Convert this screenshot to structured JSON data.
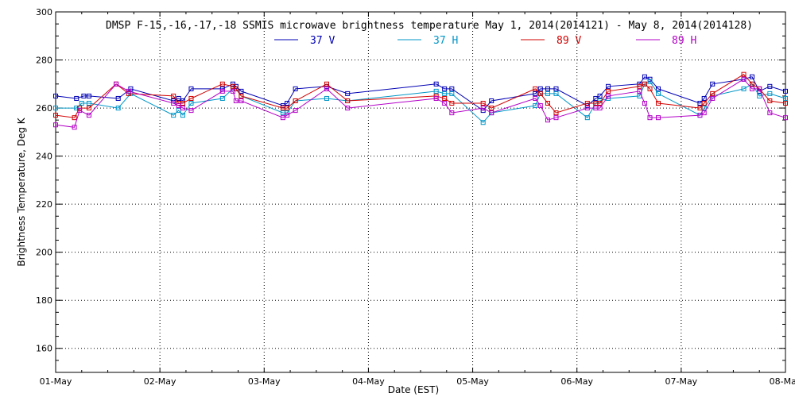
{
  "chart_data": {
    "type": "line",
    "title": "DMSP F-15,-16,-17,-18 SSMIS microwave brightness temperature May  1, 2014(2014121) - May  8, 2014(2014128)",
    "xlabel": "Date (EST)",
    "ylabel": "Brightness Temperature, Deg K",
    "xlim": [
      0,
      7
    ],
    "ylim": [
      150,
      300
    ],
    "xticks": [
      {
        "x": 0,
        "label": "01-May"
      },
      {
        "x": 1,
        "label": "02-May"
      },
      {
        "x": 2,
        "label": "03-May"
      },
      {
        "x": 3,
        "label": "04-May"
      },
      {
        "x": 4,
        "label": "05-May"
      },
      {
        "x": 5,
        "label": "06-May"
      },
      {
        "x": 6,
        "label": "07-May"
      },
      {
        "x": 7,
        "label": "08-May"
      }
    ],
    "yticks": [
      160,
      180,
      200,
      220,
      240,
      260,
      280,
      300
    ],
    "grid": true,
    "legend_position": "top-center",
    "series": [
      {
        "name": "37 V",
        "color": "#0000b4",
        "points": [
          [
            0.0,
            265
          ],
          [
            0.2,
            264
          ],
          [
            0.27,
            265
          ],
          [
            0.32,
            265
          ],
          [
            0.6,
            264
          ],
          [
            0.72,
            268
          ],
          [
            1.13,
            263
          ],
          [
            1.18,
            264
          ],
          [
            1.22,
            263
          ],
          [
            1.3,
            268
          ],
          [
            1.6,
            268
          ],
          [
            1.7,
            270
          ],
          [
            1.73,
            269
          ],
          [
            1.78,
            267
          ],
          [
            2.18,
            261
          ],
          [
            2.22,
            262
          ],
          [
            2.3,
            268
          ],
          [
            2.6,
            269
          ],
          [
            2.8,
            266
          ],
          [
            3.65,
            270
          ],
          [
            3.73,
            268
          ],
          [
            3.8,
            268
          ],
          [
            4.1,
            259
          ],
          [
            4.18,
            263
          ],
          [
            4.6,
            266
          ],
          [
            4.65,
            268
          ],
          [
            4.72,
            268
          ],
          [
            4.8,
            268
          ],
          [
            5.1,
            261
          ],
          [
            5.18,
            264
          ],
          [
            5.22,
            265
          ],
          [
            5.3,
            269
          ],
          [
            5.6,
            270
          ],
          [
            5.65,
            273
          ],
          [
            5.7,
            272
          ],
          [
            5.78,
            268
          ],
          [
            6.18,
            262
          ],
          [
            6.22,
            264
          ],
          [
            6.3,
            270
          ],
          [
            6.6,
            272
          ],
          [
            6.68,
            273
          ],
          [
            6.75,
            267
          ],
          [
            6.85,
            269
          ],
          [
            7.0,
            267
          ]
        ]
      },
      {
        "name": "37 H",
        "color": "#0096c8",
        "points": [
          [
            0.0,
            260
          ],
          [
            0.2,
            260
          ],
          [
            0.25,
            262
          ],
          [
            0.32,
            262
          ],
          [
            0.6,
            260
          ],
          [
            0.72,
            266
          ],
          [
            1.13,
            257
          ],
          [
            1.18,
            259
          ],
          [
            1.22,
            257
          ],
          [
            1.3,
            262
          ],
          [
            1.6,
            264
          ],
          [
            1.7,
            268
          ],
          [
            1.73,
            268
          ],
          [
            1.78,
            265
          ],
          [
            2.18,
            258
          ],
          [
            2.22,
            258
          ],
          [
            2.3,
            263
          ],
          [
            2.6,
            264
          ],
          [
            2.8,
            263
          ],
          [
            3.65,
            267
          ],
          [
            3.73,
            266
          ],
          [
            3.8,
            266
          ],
          [
            4.1,
            254
          ],
          [
            4.18,
            258
          ],
          [
            4.6,
            261
          ],
          [
            4.65,
            266
          ],
          [
            4.72,
            266
          ],
          [
            4.8,
            266
          ],
          [
            5.1,
            256
          ],
          [
            5.18,
            262
          ],
          [
            5.22,
            263
          ],
          [
            5.3,
            264
          ],
          [
            5.6,
            265
          ],
          [
            5.65,
            270
          ],
          [
            5.7,
            271
          ],
          [
            5.78,
            266
          ],
          [
            6.18,
            257
          ],
          [
            6.22,
            260
          ],
          [
            6.3,
            265
          ],
          [
            6.6,
            268
          ],
          [
            6.68,
            270
          ],
          [
            6.75,
            265
          ],
          [
            6.85,
            266
          ],
          [
            7.0,
            264
          ]
        ]
      },
      {
        "name": "89 V",
        "color": "#d20000",
        "points": [
          [
            0.0,
            257
          ],
          [
            0.18,
            256
          ],
          [
            0.23,
            260
          ],
          [
            0.32,
            260
          ],
          [
            0.58,
            270
          ],
          [
            0.7,
            266
          ],
          [
            1.13,
            265
          ],
          [
            1.18,
            262
          ],
          [
            1.22,
            262
          ],
          [
            1.3,
            264
          ],
          [
            1.6,
            270
          ],
          [
            1.7,
            269
          ],
          [
            1.73,
            268
          ],
          [
            1.78,
            265
          ],
          [
            2.18,
            260
          ],
          [
            2.22,
            260
          ],
          [
            2.3,
            263
          ],
          [
            2.6,
            270
          ],
          [
            2.8,
            263
          ],
          [
            3.65,
            265
          ],
          [
            3.73,
            264
          ],
          [
            3.8,
            262
          ],
          [
            4.1,
            262
          ],
          [
            4.18,
            260
          ],
          [
            4.6,
            268
          ],
          [
            4.65,
            266
          ],
          [
            4.72,
            262
          ],
          [
            4.8,
            258
          ],
          [
            5.1,
            262
          ],
          [
            5.18,
            262
          ],
          [
            5.22,
            262
          ],
          [
            5.3,
            267
          ],
          [
            5.6,
            269
          ],
          [
            5.65,
            270
          ],
          [
            5.7,
            268
          ],
          [
            5.78,
            262
          ],
          [
            6.18,
            260
          ],
          [
            6.22,
            262
          ],
          [
            6.3,
            266
          ],
          [
            6.6,
            274
          ],
          [
            6.68,
            270
          ],
          [
            6.75,
            268
          ],
          [
            6.85,
            263
          ],
          [
            7.0,
            262
          ]
        ]
      },
      {
        "name": "89 H",
        "color": "#b400c8",
        "points": [
          [
            0.0,
            253
          ],
          [
            0.18,
            252
          ],
          [
            0.23,
            259
          ],
          [
            0.32,
            257
          ],
          [
            0.58,
            270
          ],
          [
            0.7,
            267
          ],
          [
            1.13,
            262
          ],
          [
            1.18,
            261
          ],
          [
            1.22,
            260
          ],
          [
            1.3,
            259
          ],
          [
            1.6,
            267
          ],
          [
            1.7,
            267
          ],
          [
            1.73,
            263
          ],
          [
            1.78,
            263
          ],
          [
            2.18,
            256
          ],
          [
            2.22,
            257
          ],
          [
            2.3,
            259
          ],
          [
            2.6,
            268
          ],
          [
            2.8,
            260
          ],
          [
            3.65,
            264
          ],
          [
            3.73,
            262
          ],
          [
            3.8,
            258
          ],
          [
            4.1,
            260
          ],
          [
            4.18,
            258
          ],
          [
            4.6,
            264
          ],
          [
            4.65,
            261
          ],
          [
            4.72,
            255
          ],
          [
            4.8,
            256
          ],
          [
            5.1,
            260
          ],
          [
            5.18,
            260
          ],
          [
            5.22,
            260
          ],
          [
            5.3,
            265
          ],
          [
            5.6,
            267
          ],
          [
            5.65,
            262
          ],
          [
            5.7,
            256
          ],
          [
            5.78,
            256
          ],
          [
            6.18,
            257
          ],
          [
            6.22,
            258
          ],
          [
            6.3,
            264
          ],
          [
            6.6,
            272
          ],
          [
            6.68,
            268
          ],
          [
            6.75,
            268
          ],
          [
            6.85,
            258
          ],
          [
            7.0,
            256
          ]
        ]
      }
    ]
  }
}
